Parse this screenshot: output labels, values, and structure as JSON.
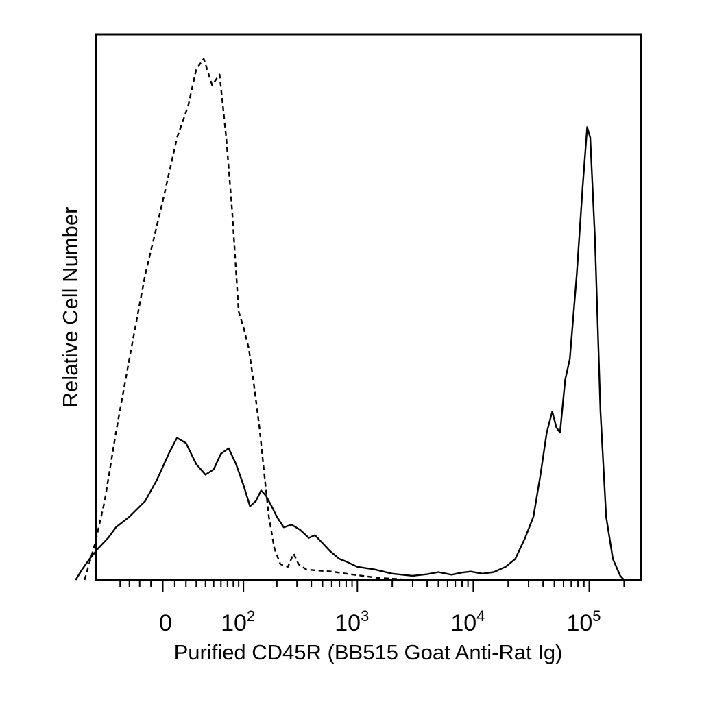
{
  "chart_data": {
    "type": "line",
    "title": "",
    "xlabel": "Purified CD45R (BB515 Goat Anti-Rat Ig)",
    "ylabel": "Relative Cell Number",
    "x_scale": "biexponential",
    "xlim": [
      -150,
      200000
    ],
    "ylim": [
      0,
      100
    ],
    "grid": false,
    "legend": "none",
    "x_tick_labels": [
      {
        "value": 0,
        "label": "0"
      },
      {
        "value": 100,
        "base": "10",
        "exp": "2"
      },
      {
        "value": 1000,
        "base": "10",
        "exp": "3"
      },
      {
        "value": 10000,
        "base": "10",
        "exp": "4"
      },
      {
        "value": 100000,
        "base": "10",
        "exp": "5"
      }
    ],
    "series": [
      {
        "style": "solid",
        "color": "#000000",
        "points": [
          [
            -115,
            0
          ],
          [
            -100,
            2
          ],
          [
            -85,
            4
          ],
          [
            -70,
            6
          ],
          [
            -55,
            8
          ],
          [
            -45,
            10
          ],
          [
            -30,
            12
          ],
          [
            -15,
            15
          ],
          [
            -5,
            19
          ],
          [
            5,
            24
          ],
          [
            12,
            27
          ],
          [
            20,
            26
          ],
          [
            30,
            22
          ],
          [
            40,
            20
          ],
          [
            50,
            21
          ],
          [
            60,
            24
          ],
          [
            72,
            25
          ],
          [
            85,
            22
          ],
          [
            100,
            18
          ],
          [
            115,
            14
          ],
          [
            130,
            15
          ],
          [
            145,
            17
          ],
          [
            160,
            16
          ],
          [
            180,
            14
          ],
          [
            200,
            12
          ],
          [
            230,
            10
          ],
          [
            270,
            10.5
          ],
          [
            320,
            9.5
          ],
          [
            380,
            8
          ],
          [
            430,
            8.5
          ],
          [
            500,
            7
          ],
          [
            580,
            5.5
          ],
          [
            700,
            4
          ],
          [
            800,
            3.5
          ],
          [
            1000,
            2.5
          ],
          [
            1400,
            2
          ],
          [
            2000,
            1.2
          ],
          [
            3000,
            0.8
          ],
          [
            4000,
            1.1
          ],
          [
            5000,
            1.5
          ],
          [
            6500,
            1
          ],
          [
            8000,
            1.4
          ],
          [
            9500,
            1.6
          ],
          [
            12000,
            1.2
          ],
          [
            15000,
            1.5
          ],
          [
            19000,
            2.5
          ],
          [
            23000,
            4
          ],
          [
            28000,
            8
          ],
          [
            33000,
            12
          ],
          [
            38000,
            20
          ],
          [
            43000,
            28
          ],
          [
            48000,
            32
          ],
          [
            52000,
            29
          ],
          [
            56000,
            28
          ],
          [
            62000,
            38
          ],
          [
            68000,
            42
          ],
          [
            78000,
            58
          ],
          [
            88000,
            75
          ],
          [
            96000,
            86
          ],
          [
            102000,
            84
          ],
          [
            112000,
            65
          ],
          [
            125000,
            32
          ],
          [
            140000,
            12
          ],
          [
            160000,
            4
          ],
          [
            185000,
            0.8
          ],
          [
            200000,
            0
          ]
        ]
      },
      {
        "style": "dashed",
        "color": "#000000",
        "points": [
          [
            -95,
            0
          ],
          [
            -75,
            7
          ],
          [
            -60,
            15
          ],
          [
            -45,
            28
          ],
          [
            -30,
            42
          ],
          [
            -15,
            58
          ],
          [
            0,
            72
          ],
          [
            12,
            84
          ],
          [
            22,
            90
          ],
          [
            30,
            97
          ],
          [
            38,
            99
          ],
          [
            48,
            94
          ],
          [
            58,
            96
          ],
          [
            68,
            84
          ],
          [
            78,
            70
          ],
          [
            90,
            51
          ],
          [
            100,
            48
          ],
          [
            112,
            44
          ],
          [
            125,
            37
          ],
          [
            140,
            29
          ],
          [
            155,
            20
          ],
          [
            170,
            12
          ],
          [
            190,
            6
          ],
          [
            215,
            3
          ],
          [
            250,
            2.5
          ],
          [
            280,
            5
          ],
          [
            310,
            3
          ],
          [
            360,
            2
          ],
          [
            450,
            1.8
          ],
          [
            600,
            1.6
          ],
          [
            800,
            1.2
          ],
          [
            1100,
            0.8
          ],
          [
            1500,
            0.4
          ],
          [
            2500,
            0.1
          ],
          [
            5000,
            0
          ],
          [
            200000,
            0
          ]
        ]
      }
    ]
  }
}
